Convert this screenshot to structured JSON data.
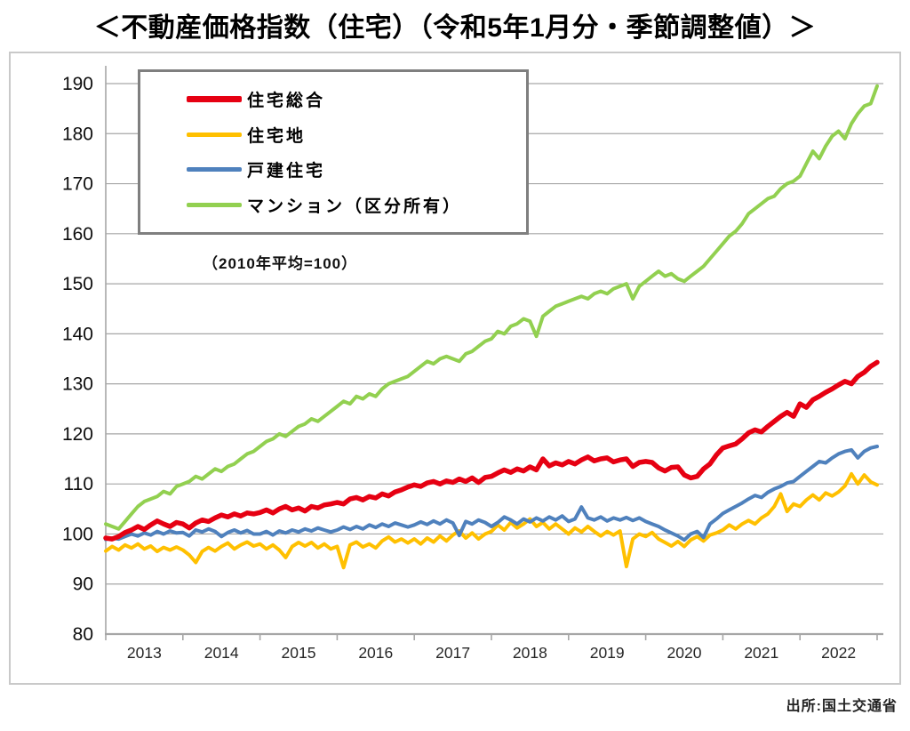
{
  "title": "＜不動産価格指数（住宅）（令和5年1月分・季節調整値）＞",
  "note": "（2010年平均=100）",
  "source": "出所:国土交通省",
  "chart_data": {
    "type": "line",
    "title": "不動産価格指数（住宅）（令和5年1月分・季節調整値）",
    "note": "2010年平均=100",
    "x_axis": {
      "start": "2013-01",
      "end": "2023-01",
      "step": "month",
      "points": 121
    },
    "x_tick_labels": [
      "2013",
      "2014",
      "2015",
      "2016",
      "2017",
      "2018",
      "2019",
      "2020",
      "2021",
      "2022"
    ],
    "ylim": [
      80,
      190
    ],
    "ytick_step": 10,
    "grid": true,
    "legend_position": "top-left",
    "colors": {
      "grid": "#a6a6a6",
      "axis": "#a6a6a6",
      "frame": "#c9c9c9",
      "legend_border": "#7f7f7f"
    },
    "series": [
      {
        "name": "住宅総合",
        "key": "jutaku-sogo",
        "color": "#e60012",
        "width": 5.5,
        "values": [
          99.2,
          99.0,
          99.5,
          100.3,
          100.8,
          101.5,
          100.9,
          101.8,
          102.6,
          102.0,
          101.5,
          102.3,
          102.0,
          101.2,
          102.2,
          102.8,
          102.5,
          103.2,
          103.8,
          103.4,
          104.0,
          103.6,
          104.2,
          104.0,
          104.3,
          104.8,
          104.2,
          105.0,
          105.5,
          104.8,
          105.2,
          104.6,
          105.5,
          105.2,
          105.8,
          106.0,
          106.3,
          106.0,
          107.0,
          107.3,
          106.8,
          107.5,
          107.2,
          108.0,
          107.6,
          108.4,
          108.8,
          109.4,
          109.8,
          109.5,
          110.2,
          110.5,
          110.0,
          110.6,
          110.3,
          111.0,
          110.5,
          111.2,
          110.3,
          111.3,
          111.5,
          112.2,
          112.8,
          112.3,
          113.0,
          112.6,
          113.4,
          112.8,
          115.0,
          113.6,
          114.2,
          113.8,
          114.5,
          114.0,
          114.8,
          115.4,
          114.6,
          115.0,
          115.2,
          114.4,
          114.8,
          115.0,
          113.5,
          114.3,
          114.5,
          114.3,
          113.2,
          112.6,
          113.3,
          113.4,
          111.8,
          111.2,
          111.5,
          113.0,
          114.0,
          115.8,
          117.2,
          117.6,
          118.0,
          119.0,
          120.2,
          120.8,
          120.4,
          121.5,
          122.5,
          123.5,
          124.3,
          123.5,
          126.0,
          125.3,
          126.8,
          127.5,
          128.3,
          129.0,
          129.8,
          130.5,
          130.0,
          131.5,
          132.3,
          133.5,
          134.3
        ]
      },
      {
        "name": "住宅地",
        "key": "jutakuchi",
        "color": "#ffc000",
        "width": 4,
        "values": [
          96.6,
          97.5,
          96.8,
          97.8,
          97.2,
          98.0,
          97.0,
          97.6,
          96.5,
          97.3,
          96.8,
          97.4,
          96.8,
          95.8,
          94.3,
          96.5,
          97.3,
          96.6,
          97.5,
          98.2,
          97.0,
          97.8,
          98.4,
          97.6,
          98.0,
          97.0,
          97.8,
          96.8,
          95.3,
          97.5,
          98.3,
          97.6,
          98.3,
          97.2,
          98.0,
          97.0,
          97.5,
          93.3,
          97.8,
          98.4,
          97.4,
          98.0,
          97.2,
          98.6,
          99.4,
          98.4,
          99.0,
          98.2,
          99.0,
          98.0,
          99.2,
          98.4,
          99.6,
          98.6,
          99.8,
          100.6,
          99.2,
          100.2,
          99.0,
          100.0,
          100.5,
          101.8,
          100.8,
          102.3,
          101.2,
          102.0,
          103.0,
          101.5,
          102.3,
          101.0,
          102.0,
          101.0,
          100.0,
          101.2,
          100.4,
          101.5,
          100.5,
          99.6,
          100.5,
          99.8,
          100.6,
          93.5,
          99.0,
          100.0,
          99.5,
          100.3,
          99.0,
          98.3,
          97.6,
          98.5,
          97.5,
          98.8,
          99.5,
          98.6,
          99.8,
          100.2,
          100.8,
          101.8,
          101.0,
          102.0,
          102.7,
          102.0,
          103.2,
          104.0,
          105.5,
          108.0,
          104.5,
          106.0,
          105.5,
          106.8,
          107.8,
          106.8,
          108.2,
          107.6,
          108.4,
          109.6,
          112.0,
          110.0,
          111.8,
          110.4,
          109.8
        ]
      },
      {
        "name": "戸建住宅",
        "key": "kodate-jutaku",
        "color": "#4f81bd",
        "width": 4,
        "values": [
          98.9,
          99.2,
          99.0,
          99.5,
          100.0,
          99.6,
          100.2,
          99.8,
          100.5,
          100.0,
          100.6,
          100.2,
          100.3,
          99.6,
          100.8,
          100.4,
          101.0,
          100.5,
          99.5,
          100.3,
          100.8,
          100.2,
          100.7,
          100.0,
          100.0,
          100.5,
          99.8,
          100.6,
          100.2,
          100.8,
          100.4,
          101.0,
          100.6,
          101.2,
          100.8,
          100.4,
          100.8,
          101.4,
          100.9,
          101.5,
          101.0,
          101.8,
          101.3,
          102.0,
          101.5,
          102.2,
          101.8,
          101.4,
          101.8,
          102.4,
          101.9,
          102.6,
          102.0,
          102.8,
          102.2,
          99.7,
          102.5,
          102.0,
          102.8,
          102.3,
          101.5,
          102.3,
          103.4,
          102.8,
          102.0,
          103.0,
          102.4,
          103.2,
          102.6,
          103.4,
          102.8,
          103.6,
          102.5,
          103.0,
          105.4,
          103.2,
          102.8,
          103.4,
          102.6,
          103.2,
          102.8,
          103.3,
          102.7,
          103.2,
          102.5,
          102.0,
          101.5,
          100.8,
          100.2,
          99.6,
          98.8,
          100.0,
          100.5,
          99.3,
          102.0,
          103.0,
          104.1,
          104.8,
          105.5,
          106.2,
          107.0,
          107.7,
          107.3,
          108.3,
          109.0,
          109.5,
          110.2,
          110.5,
          111.5,
          112.5,
          113.5,
          114.5,
          114.2,
          115.2,
          116.0,
          116.5,
          116.8,
          115.2,
          116.5,
          117.2,
          117.5
        ]
      },
      {
        "name": "マンション（区分所有）",
        "key": "mansion",
        "color": "#92d050",
        "width": 4,
        "values": [
          102.0,
          101.5,
          101.0,
          102.5,
          104.0,
          105.5,
          106.5,
          107.0,
          107.5,
          108.5,
          108.0,
          109.5,
          110.0,
          110.5,
          111.5,
          111.0,
          112.0,
          113.0,
          112.5,
          113.5,
          114.0,
          115.0,
          116.0,
          116.5,
          117.5,
          118.5,
          119.0,
          120.0,
          119.5,
          120.5,
          121.5,
          122.0,
          123.0,
          122.5,
          123.5,
          124.5,
          125.5,
          126.5,
          126.0,
          127.5,
          127.0,
          128.0,
          127.5,
          129.0,
          130.0,
          130.5,
          131.0,
          131.5,
          132.5,
          133.5,
          134.5,
          134.0,
          135.0,
          135.5,
          135.0,
          134.5,
          136.0,
          136.5,
          137.5,
          138.5,
          139.0,
          140.5,
          140.0,
          141.5,
          142.0,
          143.0,
          142.5,
          139.5,
          143.5,
          144.5,
          145.5,
          146.0,
          146.5,
          147.0,
          147.5,
          147.0,
          148.0,
          148.5,
          148.0,
          149.0,
          149.5,
          150.0,
          147.0,
          149.5,
          150.5,
          151.5,
          152.5,
          151.5,
          152.0,
          151.0,
          150.5,
          151.5,
          152.5,
          153.5,
          155.0,
          156.5,
          158.0,
          159.5,
          160.5,
          162.0,
          164.0,
          165.0,
          166.0,
          167.0,
          167.5,
          169.0,
          170.0,
          170.5,
          171.5,
          174.0,
          176.5,
          175.0,
          177.5,
          179.5,
          180.5,
          179.0,
          182.0,
          184.0,
          185.5,
          186.0,
          189.5
        ]
      }
    ]
  }
}
